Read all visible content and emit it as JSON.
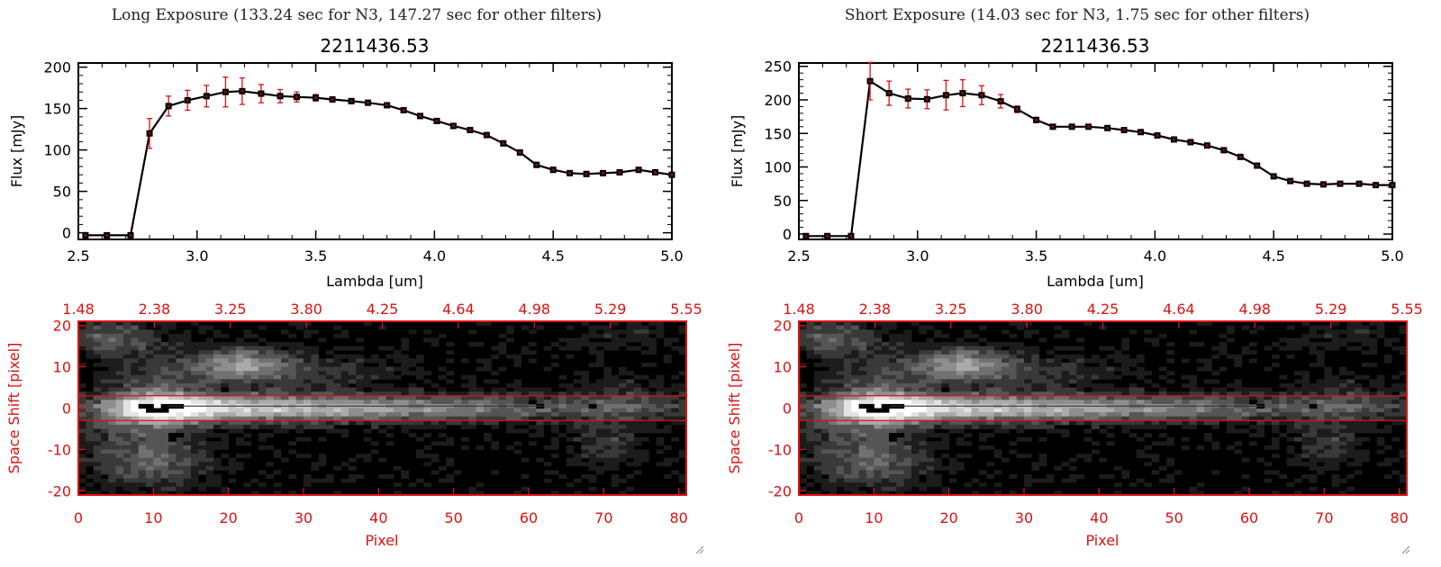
{
  "colors": {
    "accent_red": "#dd1111",
    "line": "#000000"
  },
  "panels": [
    {
      "caption": "Long Exposure (133.24 sec for N3, 147.27 sec for other filters)",
      "chart_data": {
        "type": "line",
        "title": "2211436.53",
        "xlabel": "Lambda [um]",
        "ylabel": "Flux [mJy]",
        "xlim": [
          2.5,
          5.0
        ],
        "ylim": [
          -8,
          205
        ],
        "xticks": [
          "2.5",
          "3.0",
          "3.5",
          "4.0",
          "4.5",
          "5.0"
        ],
        "yticks": [
          "0",
          "50",
          "100",
          "150",
          "200"
        ],
        "series": [
          {
            "x": [
              2.53,
              2.62,
              2.72,
              2.8,
              2.88,
              2.96,
              3.04,
              3.12,
              3.19,
              3.27,
              3.35,
              3.42,
              3.5,
              3.57,
              3.65,
              3.72,
              3.8,
              3.87,
              3.94,
              4.01,
              4.08,
              4.15,
              4.22,
              4.29,
              4.36,
              4.43,
              4.5,
              4.57,
              4.64,
              4.71,
              4.78,
              4.86,
              4.93,
              5.0
            ],
            "y": [
              -3,
              -3,
              -3,
              120,
              153,
              160,
              165,
              170,
              171,
              168,
              165,
              164,
              163,
              161,
              159,
              157,
              154,
              148,
              141,
              135,
              129,
              124,
              118,
              108,
              97,
              82,
              76,
              72,
              71,
              72,
              73,
              76,
              73,
              70
            ],
            "err": [
              0,
              0,
              0,
              18,
              12,
              12,
              13,
              18,
              16,
              11,
              8,
              6,
              4,
              3,
              3,
              3,
              3,
              3,
              3,
              3,
              3,
              3,
              3,
              3,
              3,
              3,
              3,
              3,
              3,
              3,
              3,
              3,
              3,
              3
            ]
          }
        ]
      },
      "image_data": {
        "type": "heatmap",
        "xlabel": "Pixel",
        "ylabel": "Space Shift [pixel]",
        "xlim": [
          0,
          81
        ],
        "ylim": [
          -21,
          21
        ],
        "xticks": [
          "0",
          "10",
          "20",
          "30",
          "40",
          "50",
          "60",
          "70",
          "80"
        ],
        "yticks": [
          "20",
          "10",
          "0",
          "-10",
          "-20"
        ],
        "top_ticks": [
          "1.48",
          "2.38",
          "3.25",
          "3.80",
          "4.25",
          "4.64",
          "4.98",
          "5.29",
          "5.55"
        ],
        "aperture_lines": [
          3,
          -3
        ]
      }
    },
    {
      "caption": "Short Exposure (14.03 sec for N3, 1.75 sec for other filters)",
      "chart_data": {
        "type": "line",
        "title": "2211436.53",
        "xlabel": "Lambda [um]",
        "ylabel": "Flux [mJy]",
        "xlim": [
          2.5,
          5.0
        ],
        "ylim": [
          -8,
          255
        ],
        "xticks": [
          "2.5",
          "3.0",
          "3.5",
          "4.0",
          "4.5",
          "5.0"
        ],
        "yticks": [
          "0",
          "50",
          "100",
          "150",
          "200",
          "250"
        ],
        "series": [
          {
            "x": [
              2.53,
              2.62,
              2.72,
              2.8,
              2.88,
              2.96,
              3.04,
              3.12,
              3.19,
              3.27,
              3.35,
              3.42,
              3.5,
              3.57,
              3.65,
              3.72,
              3.8,
              3.87,
              3.94,
              4.01,
              4.08,
              4.15,
              4.22,
              4.29,
              4.36,
              4.43,
              4.5,
              4.57,
              4.64,
              4.71,
              4.78,
              4.86,
              4.93,
              5.0
            ],
            "y": [
              -3,
              -3,
              -3,
              228,
              210,
              202,
              201,
              207,
              210,
              207,
              198,
              186,
              170,
              160,
              160,
              160,
              158,
              155,
              152,
              147,
              141,
              137,
              132,
              125,
              115,
              102,
              86,
              79,
              75,
              74,
              75,
              75,
              73,
              73
            ],
            "err": [
              0,
              0,
              0,
              28,
              18,
              14,
              14,
              22,
              20,
              14,
              10,
              5,
              4,
              3,
              3,
              3,
              3,
              3,
              3,
              3,
              3,
              3,
              3,
              3,
              3,
              3,
              3,
              3,
              3,
              3,
              3,
              3,
              3,
              3
            ]
          }
        ]
      },
      "image_data": {
        "type": "heatmap",
        "xlabel": "Pixel",
        "ylabel": "Space Shift [pixel]",
        "xlim": [
          0,
          81
        ],
        "ylim": [
          -21,
          21
        ],
        "xticks": [
          "0",
          "10",
          "20",
          "30",
          "40",
          "50",
          "60",
          "70",
          "80"
        ],
        "yticks": [
          "20",
          "10",
          "0",
          "-10",
          "-20"
        ],
        "top_ticks": [
          "1.48",
          "2.38",
          "3.25",
          "3.80",
          "4.25",
          "4.64",
          "4.98",
          "5.29",
          "5.55"
        ],
        "aperture_lines": [
          3,
          -3
        ]
      }
    }
  ]
}
